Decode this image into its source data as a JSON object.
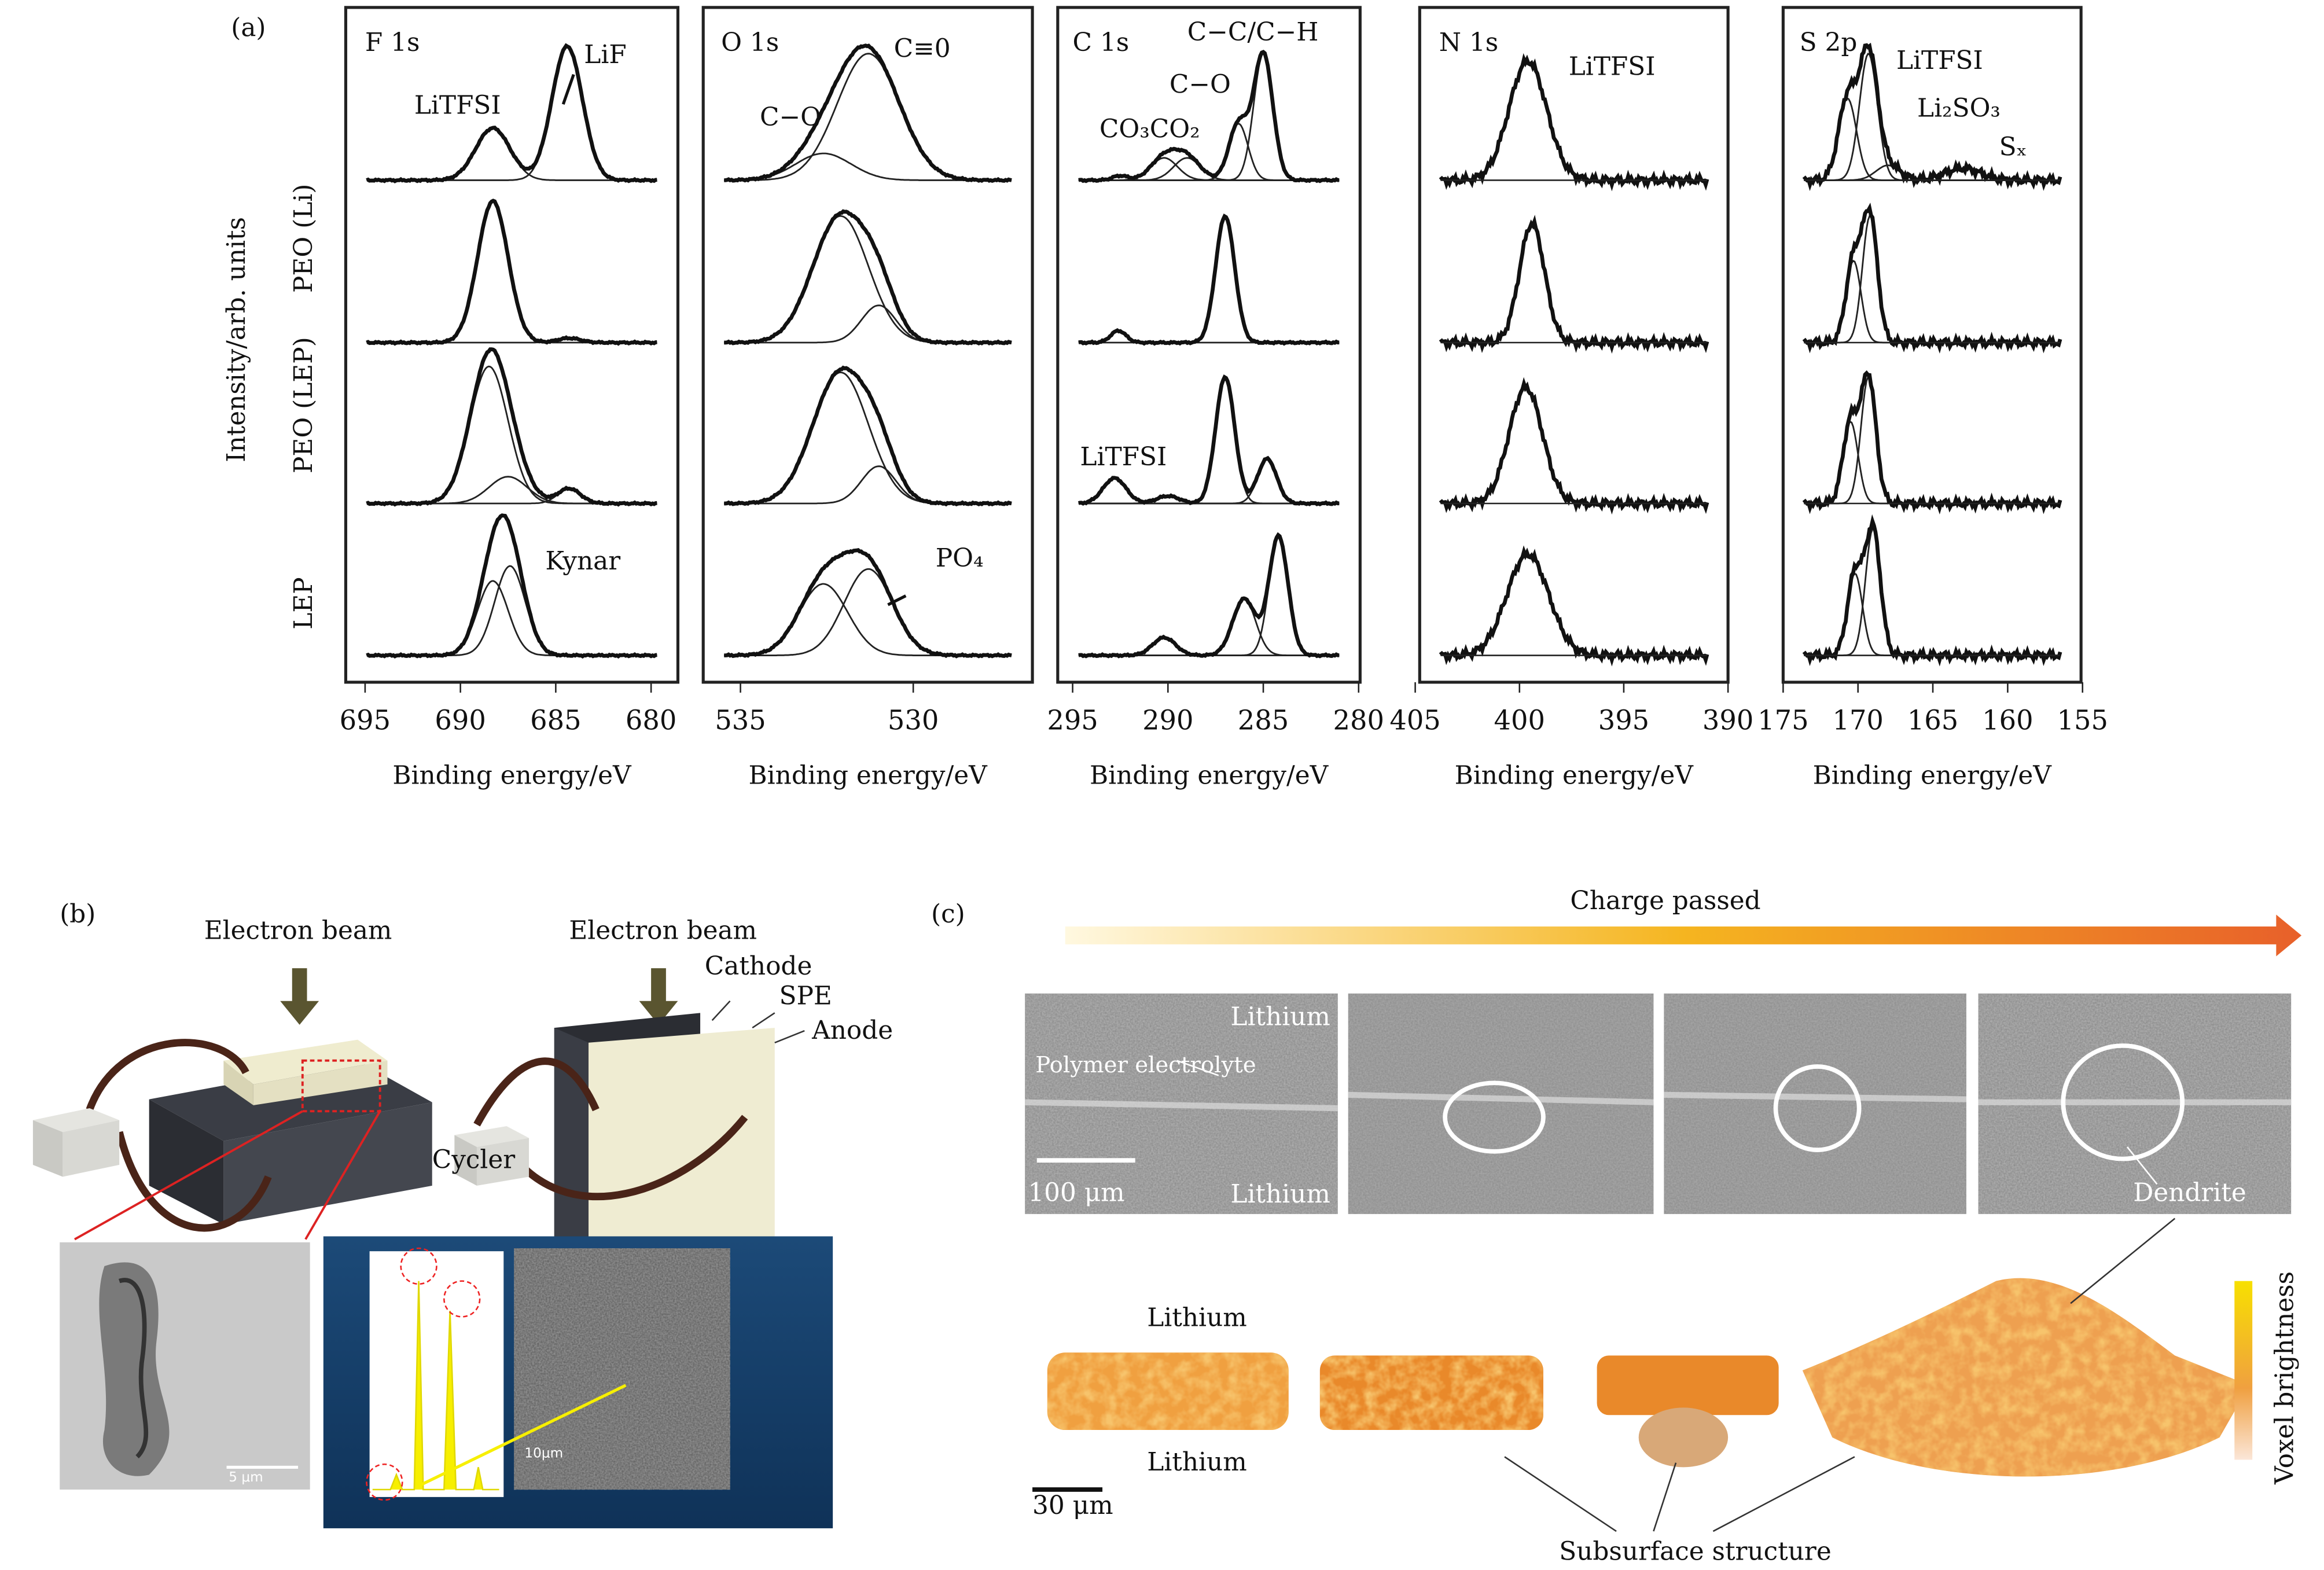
{
  "panel_a": {
    "label": "(a)",
    "y_axis_label": "Intensity/arb. units",
    "row_labels": [
      "PEO (Li)",
      "PEO (LEP)",
      "LEP"
    ],
    "panels": [
      {
        "title": "F 1s",
        "xticks": [
          695,
          690,
          685,
          680
        ],
        "x_label": "Binding energy/eV",
        "annotations": [
          "LiTFSI",
          "LiF",
          "Kynar"
        ]
      },
      {
        "title": "O 1s",
        "xticks": [
          535,
          530
        ],
        "x_label": "Binding energy/eV",
        "annotations": [
          "C≡0",
          "C−O",
          "PO₄"
        ]
      },
      {
        "title": "C 1s",
        "xticks": [
          295,
          290,
          285,
          280
        ],
        "x_label": "Binding energy/eV",
        "annotations": [
          "C−C/C−H",
          "C−O",
          "CO₃CO₂",
          "LiTFSI"
        ]
      },
      {
        "title": "N 1s",
        "xticks": [
          405,
          400,
          395,
          390
        ],
        "x_label": "Binding energy/eV",
        "annotations": [
          "LiTFSI"
        ]
      },
      {
        "title": "S 2p",
        "xticks": [
          175,
          170,
          165,
          160,
          155
        ],
        "x_label": "Binding energy/eV",
        "annotations": [
          "LiTFSI",
          "Li₂SO₃",
          "Sₓ"
        ]
      }
    ]
  },
  "panel_b": {
    "label": "(b)",
    "texts": [
      "Electron beam",
      "Electron beam",
      "Cathode",
      "SPE",
      "Anode",
      "Cycler",
      "5 μm",
      "10μm"
    ]
  },
  "panel_c": {
    "label": "(c)",
    "texts": [
      "Charge passed",
      "Lithium",
      "Polymer electrolyte",
      "100 μm",
      "Lithium",
      "Dendrite",
      "Lithium",
      "Lithium",
      "30 μm",
      "Subsurface structure",
      "Voxel brightness"
    ]
  }
}
